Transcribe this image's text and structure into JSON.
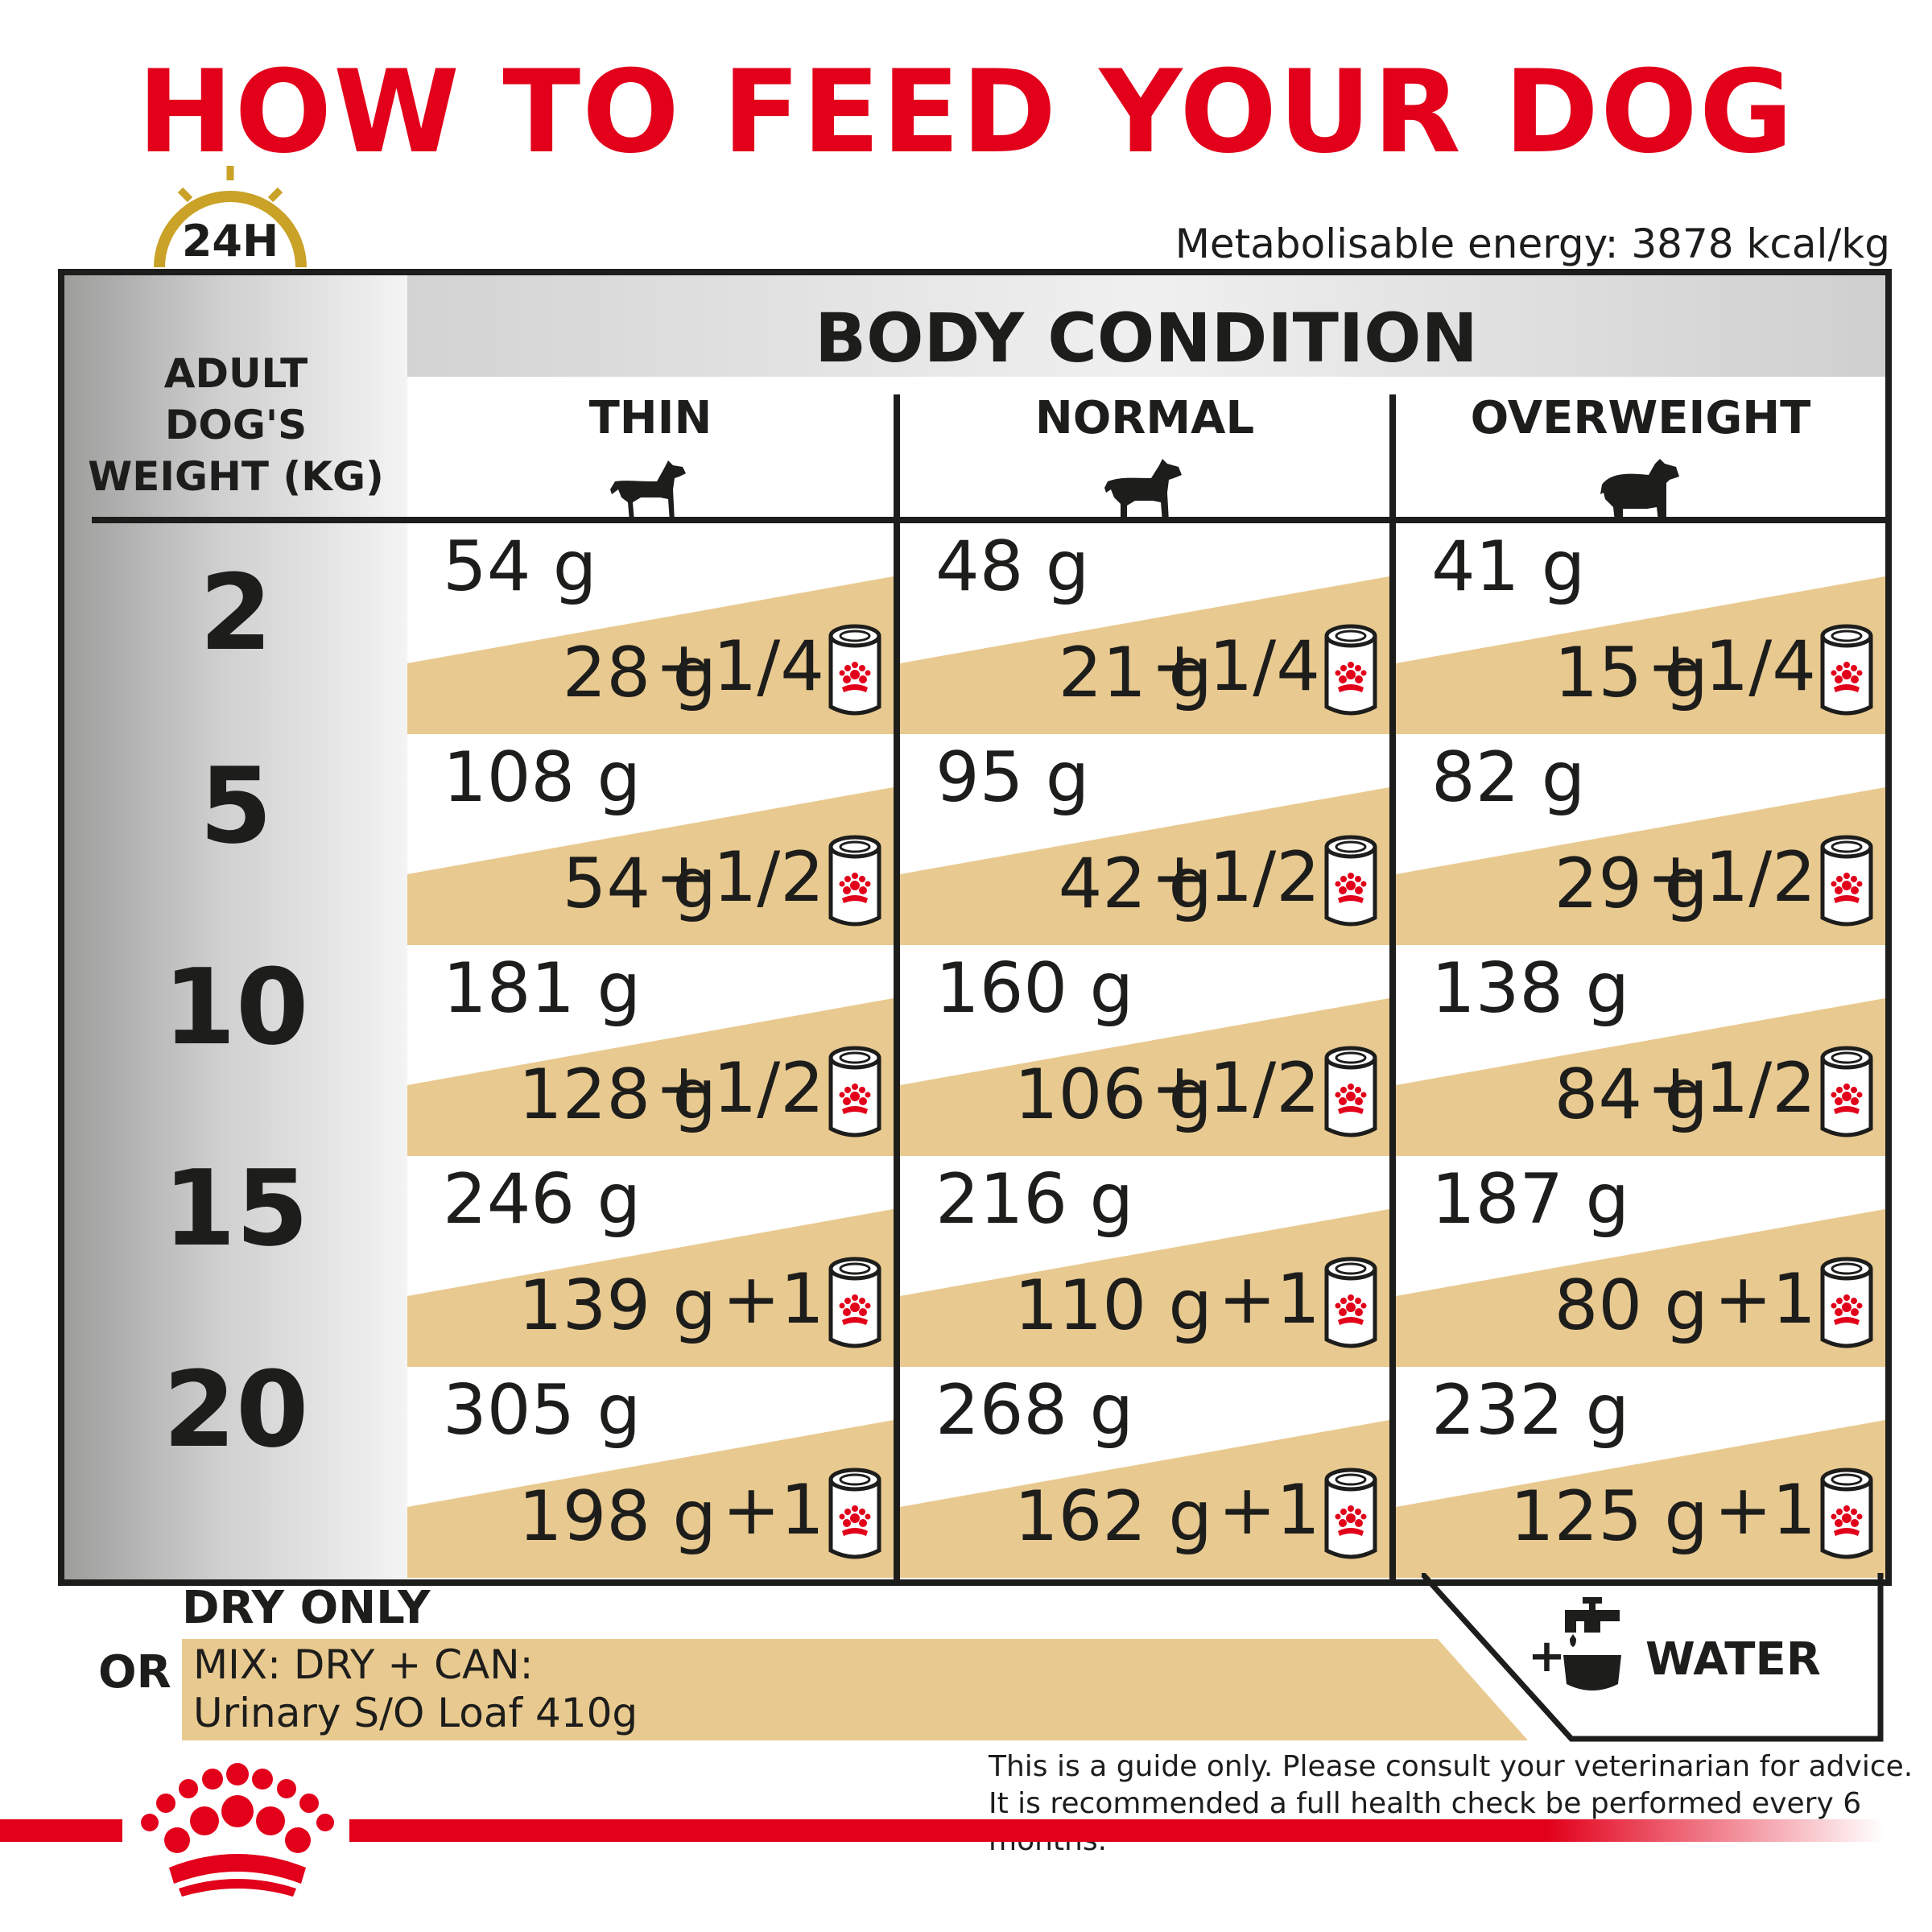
{
  "title": "HOW TO FEED YOUR DOG",
  "timer_label": "24H",
  "energy": "Metabolisable energy: 3878 kcal/kg",
  "body_condition": "BODY CONDITION",
  "weight_header": [
    "ADULT",
    "DOG'S",
    "WEIGHT (KG)"
  ],
  "columns": [
    {
      "label": "THIN"
    },
    {
      "label": "NORMAL"
    },
    {
      "label": "OVERWEIGHT"
    }
  ],
  "rows": [
    {
      "weight": "2",
      "cells": [
        {
          "dry": "54  g",
          "mix": "28  g",
          "cans": "+1/4"
        },
        {
          "dry": "48  g",
          "mix": "21 g",
          "cans": "+1/4"
        },
        {
          "dry": "41  g",
          "mix": "15 g",
          "cans": "+1/4"
        }
      ]
    },
    {
      "weight": "5",
      "cells": [
        {
          "dry": "108  g",
          "mix": "54 g",
          "cans": "+1/2"
        },
        {
          "dry": "95  g",
          "mix": "42 g",
          "cans": "+1/2"
        },
        {
          "dry": "82  g",
          "mix": "29  g",
          "cans": "+1/2"
        }
      ]
    },
    {
      "weight": "10",
      "cells": [
        {
          "dry": "181  g",
          "mix": "128  g",
          "cans": "+1/2"
        },
        {
          "dry": "160 g",
          "mix": "106 g",
          "cans": "+1/2"
        },
        {
          "dry": "138  g",
          "mix": "84  g",
          "cans": "+1/2"
        }
      ]
    },
    {
      "weight": "15",
      "cells": [
        {
          "dry": "246  g",
          "mix": "139  g",
          "cans": "+1"
        },
        {
          "dry": "216  g",
          "mix": "110  g",
          "cans": "+1"
        },
        {
          "dry": "187  g",
          "mix": "80  g",
          "cans": "+1"
        }
      ]
    },
    {
      "weight": "20",
      "cells": [
        {
          "dry": "305  g",
          "mix": "198  g",
          "cans": "+1"
        },
        {
          "dry": "268 g",
          "mix": "162  g",
          "cans": "+1"
        },
        {
          "dry": "232  g",
          "mix": "125 g",
          "cans": "+1"
        }
      ]
    }
  ],
  "legend": {
    "dry_only": "DRY ONLY",
    "or": "OR",
    "mix_line1": "MIX: DRY + CAN:",
    "mix_line2": "Urinary S/O Loaf 410g",
    "plus": "+",
    "water": "WATER"
  },
  "disclaimer": [
    "This is a guide only. Please consult your veterinarian for advice.",
    "It is recommended a full health check be performed every 6 months."
  ],
  "colors": {
    "brand_red": "#e2001a",
    "mix_band": "#e8c98f",
    "timer_gold": "#c9a227",
    "text": "#1d1d1b"
  },
  "icons": {
    "timer": "clock-24h-icon",
    "dog": "dog-silhouette-icon",
    "can": "wet-food-can-icon",
    "tap": "water-tap-icon",
    "logo": "royal-canin-crown-logo"
  }
}
